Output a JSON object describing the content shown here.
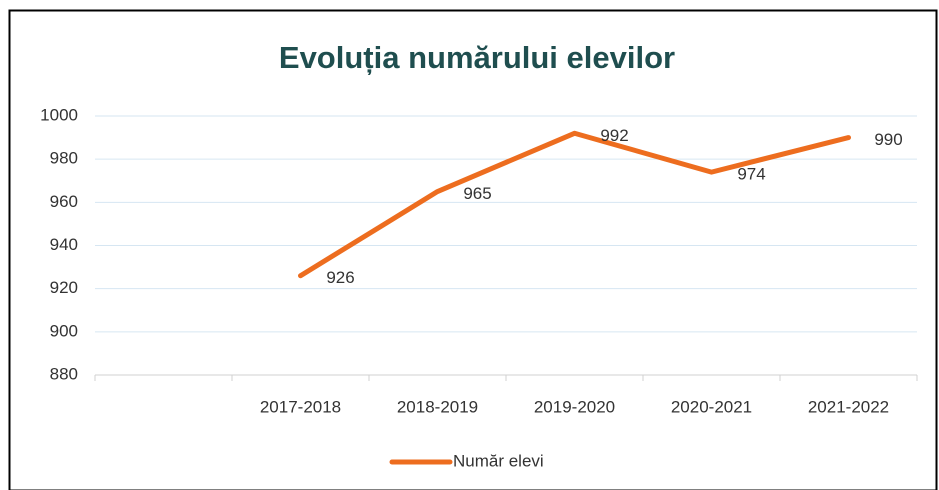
{
  "chart_data": {
    "type": "line",
    "title": "Evoluția numărului elevilor",
    "categories": [
      null,
      "2017-2018",
      "2018-2019",
      "2019-2020",
      "2020-2021",
      "2021-2022"
    ],
    "series": [
      {
        "name": "Număr elevi",
        "color": "#ed6d1f",
        "values": [
          null,
          926,
          965,
          992,
          974,
          990
        ]
      }
    ],
    "ylim": [
      880,
      1000
    ],
    "yticks": [
      880,
      900,
      920,
      940,
      960,
      980,
      1000
    ],
    "grid": true,
    "legend": "bottom"
  }
}
